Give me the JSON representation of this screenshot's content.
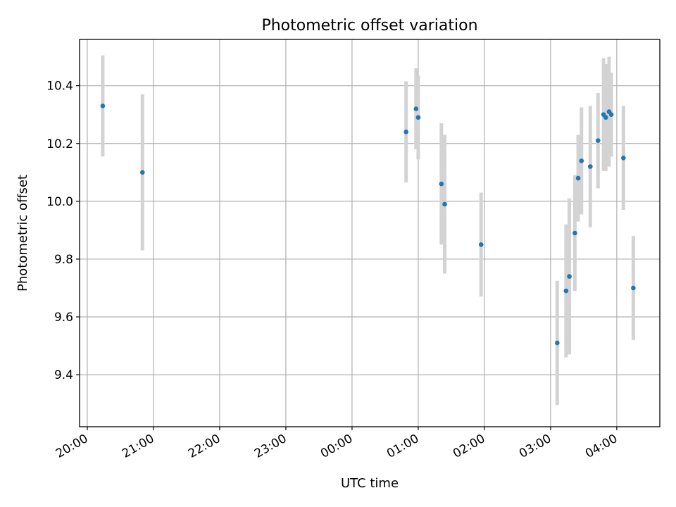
{
  "chart_data": {
    "type": "scatter",
    "title": "Photometric offset variation",
    "xlabel": "UTC time",
    "ylabel": "Photometric offset",
    "grid": true,
    "x_unit": "UTC time (HH:MM)",
    "xlim": [
      "19:53",
      "04:39"
    ],
    "ylim": [
      9.22,
      10.56
    ],
    "x_ticks": [
      "20:00",
      "21:00",
      "22:00",
      "23:00",
      "00:00",
      "01:00",
      "02:00",
      "03:00",
      "04:00"
    ],
    "y_ticks": [
      "9.4",
      "9.6",
      "9.8",
      "10.0",
      "10.2",
      "10.4"
    ],
    "marker_color": "#1f77b4",
    "errorbar_color": "#d3d3d3",
    "points": [
      {
        "x": "20:14",
        "y": 10.33,
        "yerr": 0.175
      },
      {
        "x": "20:50",
        "y": 10.1,
        "yerr": 0.27
      },
      {
        "x": "00:49",
        "y": 10.24,
        "yerr": 0.175
      },
      {
        "x": "00:58",
        "y": 10.32,
        "yerr": 0.14
      },
      {
        "x": "01:00",
        "y": 10.29,
        "yerr": 0.145
      },
      {
        "x": "01:21",
        "y": 10.06,
        "yerr": 0.21
      },
      {
        "x": "01:24",
        "y": 9.99,
        "yerr": 0.24
      },
      {
        "x": "01:57",
        "y": 9.85,
        "yerr": 0.18
      },
      {
        "x": "03:06",
        "y": 9.51,
        "yerr": 0.215
      },
      {
        "x": "03:14",
        "y": 9.69,
        "yerr": 0.23
      },
      {
        "x": "03:17",
        "y": 9.74,
        "yerr": 0.27
      },
      {
        "x": "03:22",
        "y": 9.89,
        "yerr": 0.2
      },
      {
        "x": "03:25",
        "y": 10.08,
        "yerr": 0.15
      },
      {
        "x": "03:28",
        "y": 10.14,
        "yerr": 0.185
      },
      {
        "x": "03:36",
        "y": 10.12,
        "yerr": 0.21
      },
      {
        "x": "03:43",
        "y": 10.21,
        "yerr": 0.165
      },
      {
        "x": "03:48",
        "y": 10.3,
        "yerr": 0.195
      },
      {
        "x": "03:50",
        "y": 10.29,
        "yerr": 0.185
      },
      {
        "x": "03:53",
        "y": 10.31,
        "yerr": 0.19
      },
      {
        "x": "03:55",
        "y": 10.3,
        "yerr": 0.145
      },
      {
        "x": "04:06",
        "y": 10.15,
        "yerr": 0.18
      },
      {
        "x": "04:15",
        "y": 9.7,
        "yerr": 0.18
      }
    ]
  }
}
